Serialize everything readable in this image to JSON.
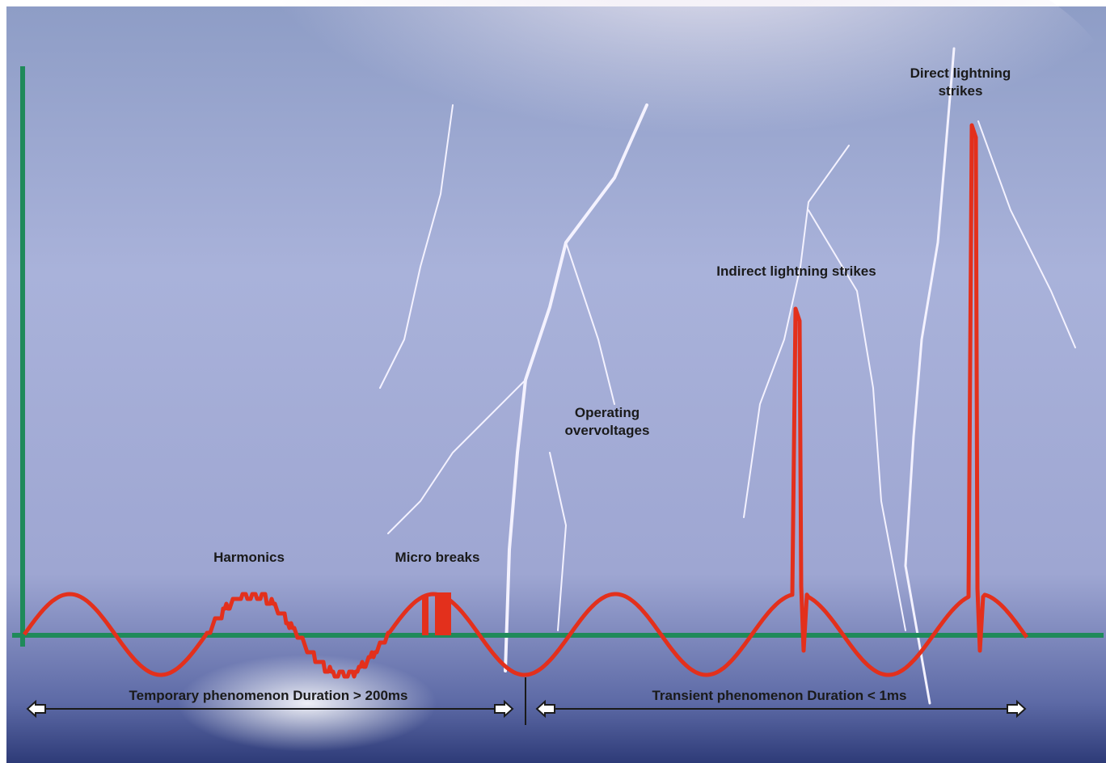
{
  "labels": [
    {
      "lines": [
        "Direct lightning",
        "strikes"
      ]
    },
    {
      "lines": [
        "Indirect lightning strikes"
      ]
    },
    {
      "lines": [
        "Operating",
        "overvoltages"
      ]
    },
    {
      "lines": [
        "Harmonics"
      ]
    },
    {
      "lines": [
        "Micro breaks"
      ]
    }
  ],
  "durations": {
    "temporary": "Temporary phenomenon Duration > 200ms",
    "transient": "Transient phenomenon Duration < 1ms"
  }
}
